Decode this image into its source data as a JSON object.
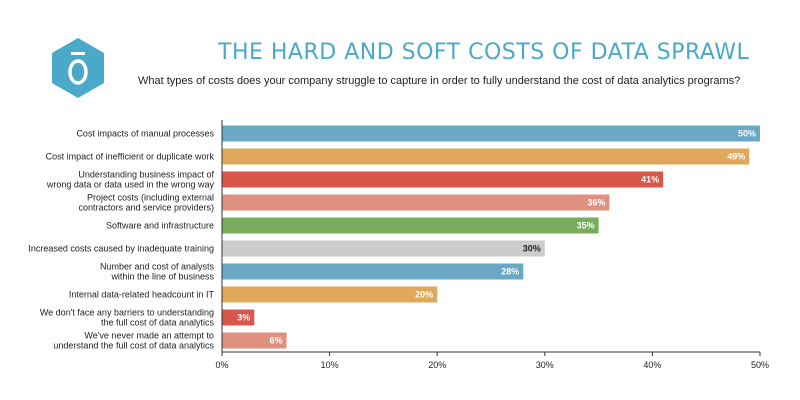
{
  "header": {
    "title": "THE HARD AND SOFT COSTS OF DATA SPRAWL",
    "subtitle": "What types of costs does your company struggle to capture in order to fully understand the cost of data analytics programs?"
  },
  "logo": {
    "icon": "hexagon-o-logo-icon",
    "color": "#4aa9c9"
  },
  "chart_data": {
    "type": "bar",
    "orientation": "horizontal",
    "title": "THE HARD AND SOFT COSTS OF DATA SPRAWL",
    "subtitle": "What types of costs does your company struggle to capture in order to fully understand the cost of data analytics programs?",
    "xlabel": "",
    "ylabel": "",
    "xlim": [
      0,
      50
    ],
    "ticks": [
      0,
      10,
      20,
      30,
      40,
      50
    ],
    "tick_labels": [
      "0%",
      "10%",
      "20%",
      "30%",
      "40%",
      "50%"
    ],
    "categories": [
      [
        "Cost impacts of manual processes"
      ],
      [
        "Cost impact of inefficient or duplicate work"
      ],
      [
        "Understanding business impact of",
        "wrong data or data used in the wrong way"
      ],
      [
        "Project costs (including external",
        "contractors and service providers)"
      ],
      [
        "Software and infrastructure"
      ],
      [
        "Increased costs caused by inadequate training"
      ],
      [
        "Number and cost of analysts",
        "within the line of business"
      ],
      [
        "Internal data-related headcount in IT"
      ],
      [
        "We don't face any barriers to understanding",
        "the full cost of data analytics"
      ],
      [
        "We've never made an attempt to",
        "understand the full cost of data analytics"
      ]
    ],
    "values": [
      50,
      49,
      41,
      36,
      35,
      30,
      28,
      20,
      3,
      6
    ],
    "value_labels": [
      "50%",
      "49%",
      "41%",
      "36%",
      "35%",
      "30%",
      "28%",
      "20%",
      "3%",
      "6%"
    ],
    "colors": [
      "#69a9c4",
      "#e0a85a",
      "#d9574a",
      "#e0907e",
      "#77ad5a",
      "#cccccc",
      "#69a9c4",
      "#e0a85a",
      "#d9574a",
      "#e0907e"
    ],
    "label_colors": [
      "#ffffff",
      "#ffffff",
      "#ffffff",
      "#ffffff",
      "#ffffff",
      "#222222",
      "#ffffff",
      "#ffffff",
      "#ffffff",
      "#ffffff"
    ],
    "grid": false
  }
}
